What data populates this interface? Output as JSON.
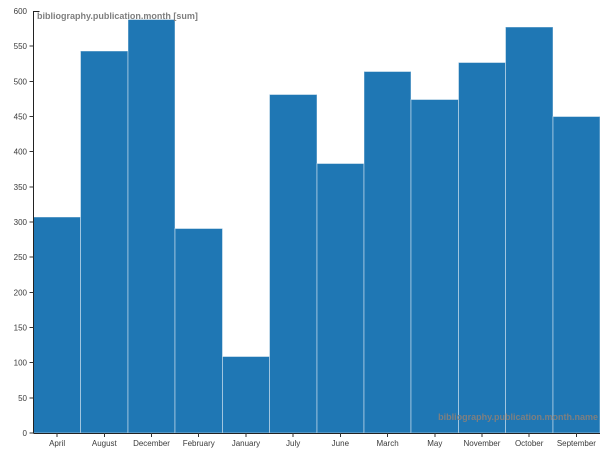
{
  "chart_data": {
    "type": "bar",
    "title": "bibliography.publication.month [sum]",
    "xlabel": "bibliography.publication.month.name",
    "ylabel": "",
    "categories": [
      "April",
      "August",
      "December",
      "February",
      "January",
      "July",
      "June",
      "March",
      "May",
      "November",
      "October",
      "September"
    ],
    "values": [
      307,
      543,
      588,
      291,
      109,
      481,
      383,
      514,
      474,
      527,
      577,
      450
    ],
    "ylim": [
      0,
      600
    ],
    "ytick_step": 50,
    "grid": false,
    "legend": "none",
    "colors": {
      "bar": "#1f77b4",
      "bar_separator": "rgba(255,255,255,0.45)",
      "axis": "#222222",
      "tick": "#333333",
      "tick_label": "#3a3a3a",
      "axis_title": "#7f7f7f",
      "background": "#ffffff"
    }
  }
}
